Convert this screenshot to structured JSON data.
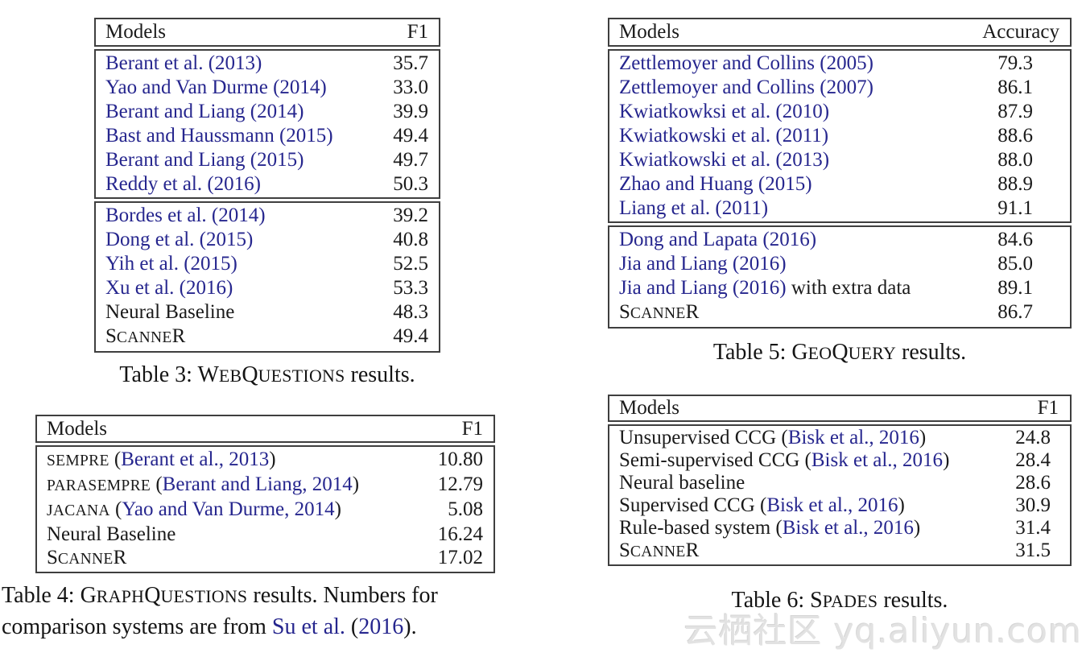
{
  "colors": {
    "text": "#1a1a1a",
    "citation_link": "#26268e",
    "table_border": "#3f3f3f",
    "watermark": "#e2e2e2",
    "background": "#ffffff"
  },
  "tables": [
    {
      "key": "webquestions",
      "header": {
        "models": "Models",
        "metric": "F1"
      },
      "sections": [
        {
          "rows": [
            {
              "model": [
                {
                  "t": "Berant et al. (2013)",
                  "s": "link"
                }
              ],
              "value": "35.7"
            },
            {
              "model": [
                {
                  "t": "Yao and Van Durme (2014)",
                  "s": "link"
                }
              ],
              "value": "33.0"
            },
            {
              "model": [
                {
                  "t": "Berant and Liang (2014)",
                  "s": "link"
                }
              ],
              "value": "39.9"
            },
            {
              "model": [
                {
                  "t": "Bast and Haussmann (2015)",
                  "s": "link"
                }
              ],
              "value": "49.4"
            },
            {
              "model": [
                {
                  "t": "Berant and Liang (2015)",
                  "s": "link"
                }
              ],
              "value": "49.7"
            },
            {
              "model": [
                {
                  "t": "Reddy et al. (2016)",
                  "s": "link"
                }
              ],
              "value": "50.3"
            }
          ]
        },
        {
          "rows": [
            {
              "model": [
                {
                  "t": "Bordes et al. (2014)",
                  "s": "link"
                }
              ],
              "value": "39.2"
            },
            {
              "model": [
                {
                  "t": "Dong et al. (2015)",
                  "s": "link"
                }
              ],
              "value": "40.8"
            },
            {
              "model": [
                {
                  "t": "Yih et al. (2015)",
                  "s": "link"
                }
              ],
              "value": "52.5"
            },
            {
              "model": [
                {
                  "t": "Xu et al. (2016)",
                  "s": "link"
                }
              ],
              "value": "53.3"
            },
            {
              "model": [
                {
                  "t": "Neural Baseline"
                }
              ],
              "value": "48.3"
            },
            {
              "model": [
                {
                  "t": "S"
                },
                {
                  "t": "CANNE",
                  "s": "sc"
                },
                {
                  "t": "R"
                }
              ],
              "value": "49.4"
            }
          ]
        }
      ],
      "caption": [
        {
          "t": "Table 3: "
        },
        {
          "t": "W"
        },
        {
          "t": "EB",
          "s": "sc"
        },
        {
          "t": "Q"
        },
        {
          "t": "UESTIONS",
          "s": "sc"
        },
        {
          "t": " results."
        }
      ],
      "caption_text": "Table 3: WEBQUESTIONS results."
    },
    {
      "key": "graphquestions",
      "header": {
        "models": "Models",
        "metric": "F1"
      },
      "sections": [
        {
          "rows": [
            {
              "model": [
                {
                  "t": "SEMPRE",
                  "s": "sc"
                },
                {
                  "t": " ("
                },
                {
                  "t": "Berant et al., 2013",
                  "s": "link"
                },
                {
                  "t": ")"
                }
              ],
              "value": "10.80"
            },
            {
              "model": [
                {
                  "t": "PARASEMPRE",
                  "s": "sc"
                },
                {
                  "t": " ("
                },
                {
                  "t": "Berant and Liang, 2014",
                  "s": "link"
                },
                {
                  "t": ")"
                }
              ],
              "value": "12.79"
            },
            {
              "model": [
                {
                  "t": "JACANA",
                  "s": "sc"
                },
                {
                  "t": " ("
                },
                {
                  "t": "Yao and Van Durme, 2014",
                  "s": "link"
                },
                {
                  "t": ")"
                }
              ],
              "value": "5.08"
            },
            {
              "model": [
                {
                  "t": "Neural Baseline"
                }
              ],
              "value": "16.24"
            },
            {
              "model": [
                {
                  "t": "S"
                },
                {
                  "t": "CANNE",
                  "s": "sc"
                },
                {
                  "t": "R"
                }
              ],
              "value": "17.02"
            }
          ]
        }
      ],
      "caption": [
        {
          "t": "Table 4: "
        },
        {
          "t": "G"
        },
        {
          "t": "RAPH",
          "s": "sc"
        },
        {
          "t": "Q"
        },
        {
          "t": "UESTIONS",
          "s": "sc"
        },
        {
          "t": " results. Numbers for"
        },
        {
          "br": true
        },
        {
          "t": "comparison systems are from "
        },
        {
          "t": "Su et al.",
          "s": "link"
        },
        {
          "t": " ("
        },
        {
          "t": "2016",
          "s": "link"
        },
        {
          "t": ")."
        }
      ],
      "caption_text": "Table 4: GRAPHQUESTIONS results. Numbers for comparison systems are from Su et al. (2016)."
    },
    {
      "key": "geoquery",
      "header": {
        "models": "Models",
        "metric": "Accuracy"
      },
      "sections": [
        {
          "rows": [
            {
              "model": [
                {
                  "t": "Zettlemoyer and Collins (2005)",
                  "s": "link"
                }
              ],
              "value": "79.3"
            },
            {
              "model": [
                {
                  "t": "Zettlemoyer and Collins (2007)",
                  "s": "link"
                }
              ],
              "value": "86.1"
            },
            {
              "model": [
                {
                  "t": "Kwiatkowksi et al. (2010)",
                  "s": "link"
                }
              ],
              "value": "87.9"
            },
            {
              "model": [
                {
                  "t": "Kwiatkowski et al. (2011)",
                  "s": "link"
                }
              ],
              "value": "88.6"
            },
            {
              "model": [
                {
                  "t": "Kwiatkowski et al. (2013)",
                  "s": "link"
                }
              ],
              "value": "88.0"
            },
            {
              "model": [
                {
                  "t": "Zhao and Huang (2015)",
                  "s": "link"
                }
              ],
              "value": "88.9"
            },
            {
              "model": [
                {
                  "t": "Liang et al. (2011)",
                  "s": "link"
                }
              ],
              "value": "91.1"
            }
          ]
        },
        {
          "rows": [
            {
              "model": [
                {
                  "t": "Dong and Lapata (2016)",
                  "s": "link"
                }
              ],
              "value": "84.6"
            },
            {
              "model": [
                {
                  "t": "Jia and Liang (2016)",
                  "s": "link"
                }
              ],
              "value": "85.0"
            },
            {
              "model": [
                {
                  "t": "Jia and Liang (2016)",
                  "s": "link"
                },
                {
                  "t": " with extra data"
                }
              ],
              "value": "89.1"
            },
            {
              "model": [
                {
                  "t": "S"
                },
                {
                  "t": "CANNE",
                  "s": "sc"
                },
                {
                  "t": "R"
                }
              ],
              "value": "86.7"
            }
          ]
        }
      ],
      "caption": [
        {
          "t": "Table 5: "
        },
        {
          "t": "G"
        },
        {
          "t": "EO",
          "s": "sc"
        },
        {
          "t": "Q"
        },
        {
          "t": "UERY",
          "s": "sc"
        },
        {
          "t": " results."
        }
      ],
      "caption_text": "Table 5: GEOQUERY results."
    },
    {
      "key": "spades",
      "header": {
        "models": "Models",
        "metric": "F1"
      },
      "sections": [
        {
          "rows": [
            {
              "model": [
                {
                  "t": "Unsupervised CCG ("
                },
                {
                  "t": "Bisk et al., 2016",
                  "s": "link"
                },
                {
                  "t": ")"
                }
              ],
              "value": "24.8"
            },
            {
              "model": [
                {
                  "t": "Semi-supervised CCG ("
                },
                {
                  "t": "Bisk et al., 2016",
                  "s": "link"
                },
                {
                  "t": ")"
                }
              ],
              "value": "28.4"
            },
            {
              "model": [
                {
                  "t": "Neural baseline"
                }
              ],
              "value": "28.6"
            },
            {
              "model": [
                {
                  "t": "Supervised CCG ("
                },
                {
                  "t": "Bisk et al., 2016",
                  "s": "link"
                },
                {
                  "t": ")"
                }
              ],
              "value": "30.9"
            },
            {
              "model": [
                {
                  "t": "Rule-based system ("
                },
                {
                  "t": "Bisk et al., 2016",
                  "s": "link"
                },
                {
                  "t": ")"
                }
              ],
              "value": "31.4"
            },
            {
              "model": [
                {
                  "t": "S"
                },
                {
                  "t": "CANNE",
                  "s": "sc"
                },
                {
                  "t": "R"
                }
              ],
              "value": "31.5"
            }
          ]
        }
      ],
      "caption": [
        {
          "t": "Table 6: "
        },
        {
          "t": "S"
        },
        {
          "t": "PADES",
          "s": "sc"
        },
        {
          "t": " results."
        }
      ],
      "caption_text": "Table 6: SPADES results."
    }
  ],
  "watermark": {
    "text": "云栖社区 yq.aliyun.com"
  }
}
